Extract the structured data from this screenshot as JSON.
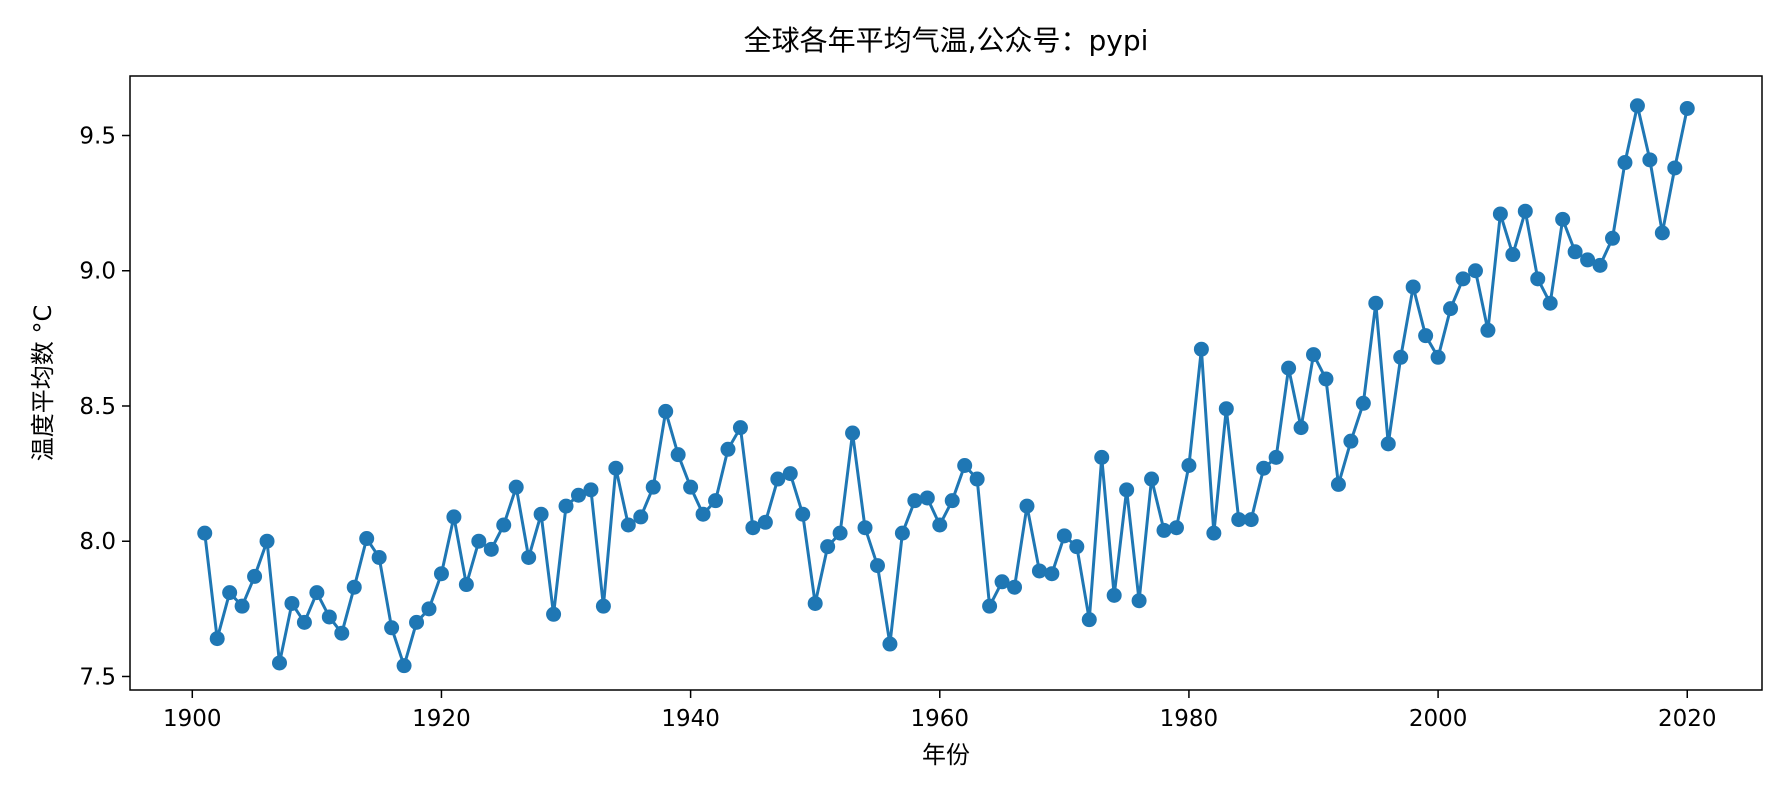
{
  "chart_data": {
    "type": "line",
    "title": "全球各年平均气温,公众号：pypi",
    "xlabel": "年份",
    "ylabel": "温度平均数 °C",
    "xlim": [
      1895,
      2026
    ],
    "ylim": [
      7.45,
      9.72
    ],
    "x_ticks": [
      1900,
      1920,
      1940,
      1960,
      1980,
      2000,
      2020
    ],
    "y_ticks": [
      7.5,
      8.0,
      8.5,
      9.0,
      9.5
    ],
    "y_tick_labels": [
      "7.5",
      "8.0",
      "8.5",
      "9.0",
      "9.5"
    ],
    "grid": false,
    "color": "#1f77b4",
    "marker": "circle",
    "series": [
      {
        "name": "",
        "x": [
          1901,
          1902,
          1903,
          1904,
          1905,
          1906,
          1907,
          1908,
          1909,
          1910,
          1911,
          1912,
          1913,
          1914,
          1915,
          1916,
          1917,
          1918,
          1919,
          1920,
          1921,
          1922,
          1923,
          1924,
          1925,
          1926,
          1927,
          1928,
          1929,
          1930,
          1931,
          1932,
          1933,
          1934,
          1935,
          1936,
          1937,
          1938,
          1939,
          1940,
          1941,
          1942,
          1943,
          1944,
          1945,
          1946,
          1947,
          1948,
          1949,
          1950,
          1951,
          1952,
          1953,
          1954,
          1955,
          1956,
          1957,
          1958,
          1959,
          1960,
          1961,
          1962,
          1963,
          1964,
          1965,
          1966,
          1967,
          1968,
          1969,
          1970,
          1971,
          1972,
          1973,
          1974,
          1975,
          1976,
          1977,
          1978,
          1979,
          1980,
          1981,
          1982,
          1983,
          1984,
          1985,
          1986,
          1987,
          1988,
          1989,
          1990,
          1991,
          1992,
          1993,
          1994,
          1995,
          1996,
          1997,
          1998,
          1999,
          2000,
          2001,
          2002,
          2003,
          2004,
          2005,
          2006,
          2007,
          2008,
          2009,
          2010,
          2011,
          2012,
          2013,
          2014,
          2015,
          2016,
          2017,
          2018,
          2019,
          2020
        ],
        "values": [
          8.03,
          7.64,
          7.81,
          7.76,
          7.87,
          8.0,
          7.55,
          7.77,
          7.7,
          7.81,
          7.72,
          7.66,
          7.83,
          8.01,
          7.94,
          7.68,
          7.54,
          7.7,
          7.75,
          7.88,
          8.09,
          7.84,
          8.0,
          7.97,
          8.06,
          8.2,
          7.94,
          8.1,
          7.73,
          8.13,
          8.17,
          8.19,
          7.76,
          8.27,
          8.06,
          8.09,
          8.2,
          8.48,
          8.32,
          8.2,
          8.1,
          8.15,
          8.34,
          8.42,
          8.05,
          8.07,
          8.23,
          8.25,
          8.1,
          7.77,
          7.98,
          8.03,
          8.4,
          8.05,
          7.91,
          7.62,
          8.03,
          8.15,
          8.16,
          8.06,
          8.15,
          8.28,
          8.23,
          7.76,
          7.85,
          7.83,
          8.13,
          7.89,
          7.88,
          8.02,
          7.98,
          7.71,
          8.31,
          7.8,
          8.19,
          7.78,
          8.23,
          8.04,
          8.05,
          8.28,
          8.71,
          8.03,
          8.49,
          8.08,
          8.08,
          8.27,
          8.31,
          8.64,
          8.42,
          8.69,
          8.6,
          8.21,
          8.37,
          8.51,
          8.88,
          8.36,
          8.68,
          8.94,
          8.76,
          8.68,
          8.86,
          8.97,
          9.0,
          8.78,
          9.21,
          9.06,
          9.22,
          8.97,
          8.88,
          9.19,
          9.07,
          9.04,
          9.02,
          9.12,
          9.4,
          9.61,
          9.41,
          9.14,
          9.38,
          9.6
        ]
      }
    ]
  }
}
